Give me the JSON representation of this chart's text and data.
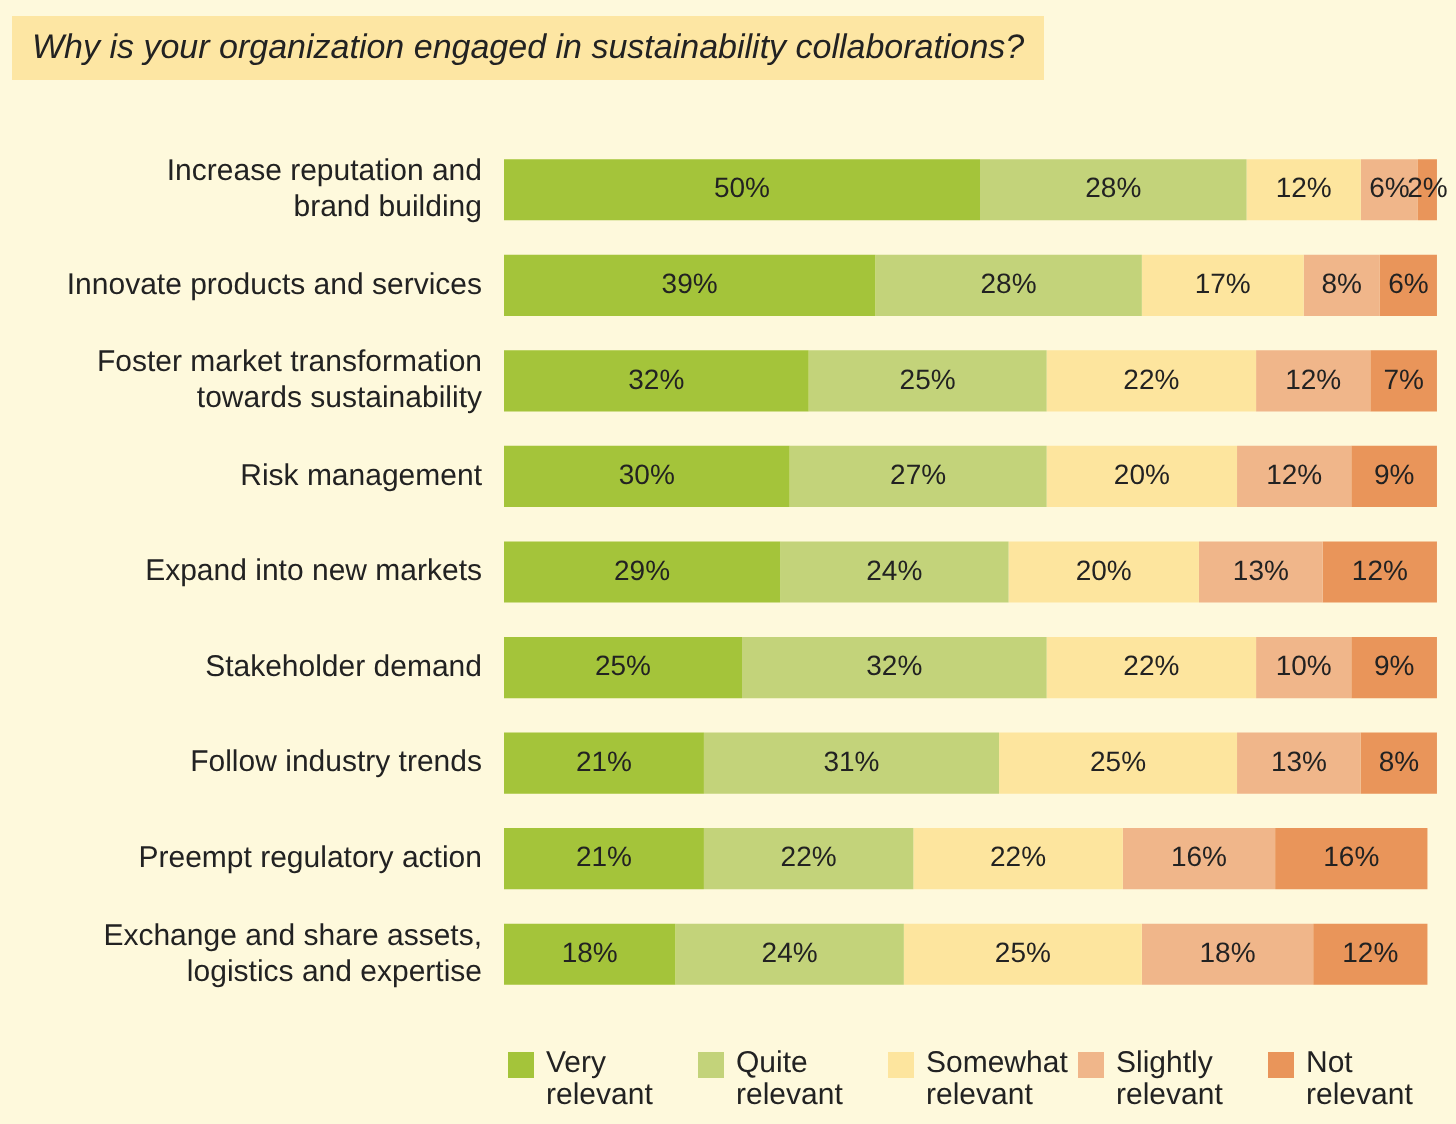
{
  "chart_data": {
    "type": "bar",
    "orientation": "horizontal",
    "stacked": true,
    "title": "Why is your organization engaged in sustainability collaborations?",
    "categories": [
      "Increase reputation and brand building",
      "Innovate products and services",
      "Foster market transformation towards sustainability",
      "Risk management",
      "Expand into new markets",
      "Stakeholder demand",
      "Follow industry trends",
      "Preempt regulatory action",
      "Exchange and share assets, logistics and expertise"
    ],
    "legend": "bottom",
    "series": [
      {
        "name": "Very relevant",
        "color": "#a4c43a",
        "values": [
          50,
          39,
          32,
          30,
          29,
          25,
          21,
          21,
          18
        ],
        "value_labels": [
          "50%",
          "39%",
          "32%",
          "30%",
          "29%",
          "25%",
          "21%",
          "21%",
          "18%"
        ]
      },
      {
        "name": "Quite relevant",
        "color": "#c3d37a",
        "values": [
          28,
          28,
          25,
          27,
          24,
          32,
          31,
          22,
          24
        ],
        "value_labels": [
          "28%",
          "28%",
          "25%",
          "27%",
          "24%",
          "32%",
          "31%",
          "22%",
          "24%"
        ]
      },
      {
        "name": "Somewhat relevant",
        "color": "#fde59e",
        "values": [
          12,
          17,
          22,
          20,
          20,
          22,
          25,
          22,
          25
        ],
        "value_labels": [
          "12%",
          "17%",
          "22%",
          "20%",
          "20%",
          "22%",
          "25%",
          "22%",
          "25%"
        ]
      },
      {
        "name": "Slightly relevant",
        "color": "#f0b68a",
        "values": [
          6,
          8,
          12,
          12,
          13,
          10,
          13,
          16,
          18
        ],
        "value_labels": [
          "6%",
          "8%",
          "12%",
          "12%",
          "13%",
          "10%",
          "13%",
          "16%",
          "18%"
        ]
      },
      {
        "name": "Not relevant",
        "color": "#e9955a",
        "values": [
          2,
          6,
          7,
          9,
          12,
          9,
          8,
          16,
          12
        ],
        "value_labels": [
          "2%",
          "6%",
          "7%",
          "9%",
          "12%",
          "9%",
          "8%",
          "16%",
          "12%"
        ]
      }
    ]
  }
}
